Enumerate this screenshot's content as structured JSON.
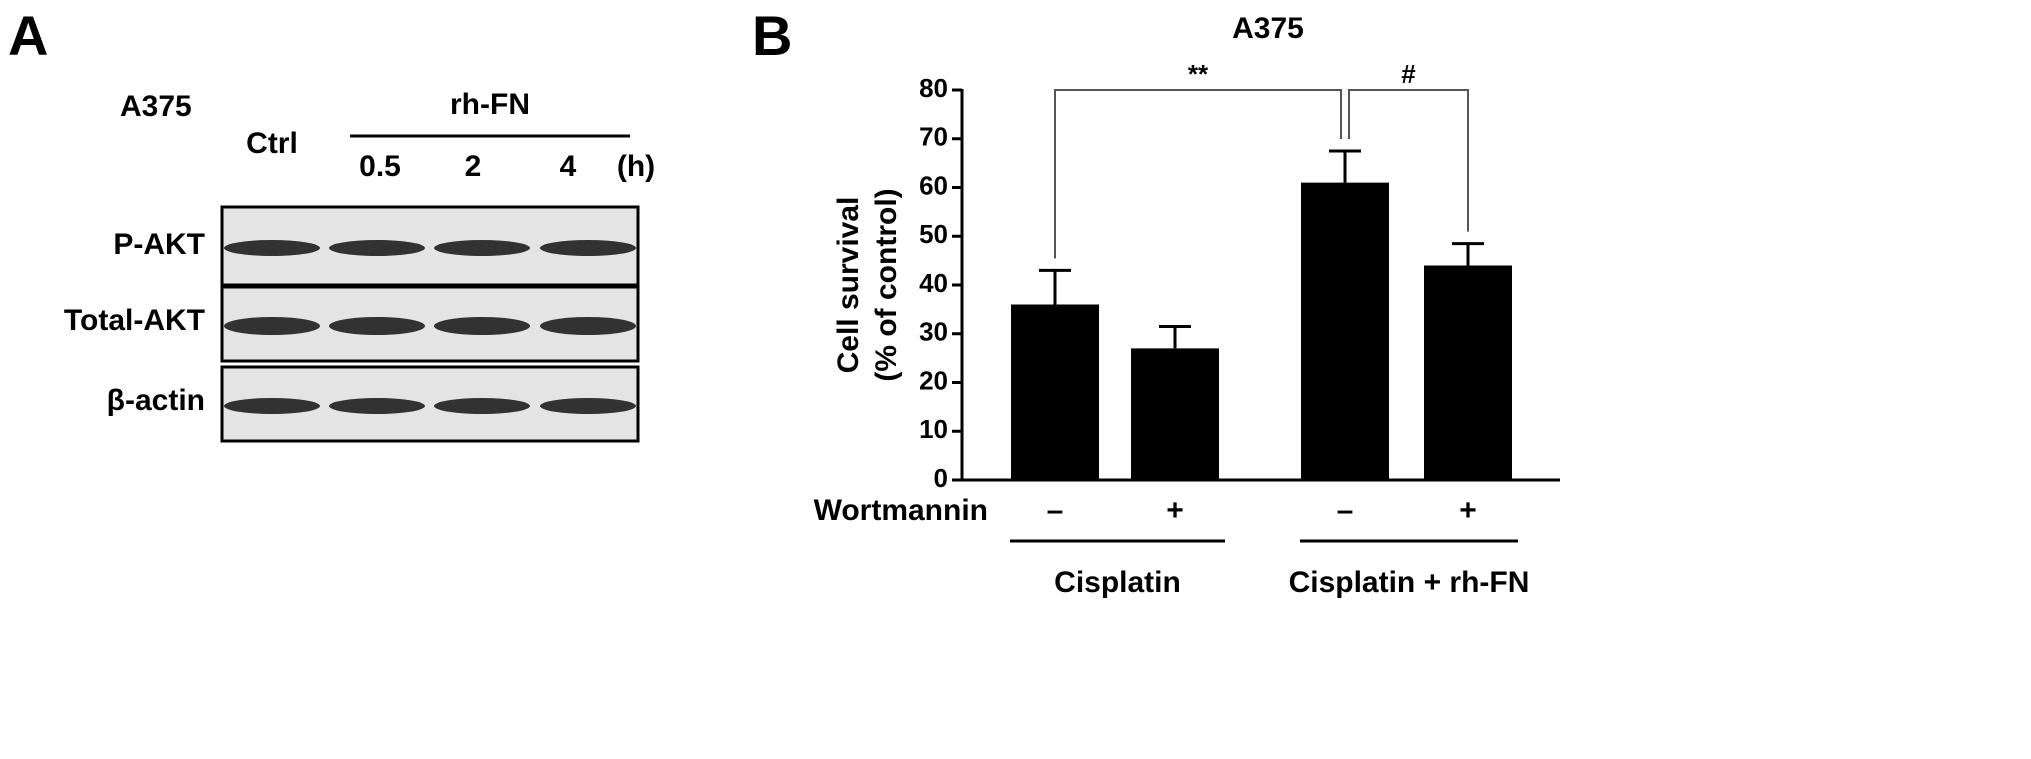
{
  "panel_a": {
    "letter": "A",
    "cell_line": "A375",
    "control": "Ctrl",
    "treatment": "rh-FN",
    "times": [
      "0.5",
      "2",
      "4"
    ],
    "unit": "(h)",
    "rows": [
      "P-AKT",
      "Total-AKT",
      "β-actin"
    ]
  },
  "chart_data": {
    "type": "bar",
    "letter": "B",
    "title": "A375",
    "y_label": [
      "Cell survival",
      "(% of control)"
    ],
    "x_row_label": "Wortmannin",
    "categories": [
      "–",
      "+",
      "–",
      "+"
    ],
    "groups": [
      "Cisplatin",
      "Cisplatin + rh-FN"
    ],
    "values": [
      36,
      27,
      61,
      44
    ],
    "errors": [
      7,
      4.5,
      6.5,
      4.5
    ],
    "color": "#000000",
    "annotations": [
      "**",
      "#"
    ],
    "ylim": [
      0,
      80
    ],
    "yticks": [
      0,
      10,
      20,
      30,
      40,
      50,
      60,
      70,
      80
    ]
  }
}
